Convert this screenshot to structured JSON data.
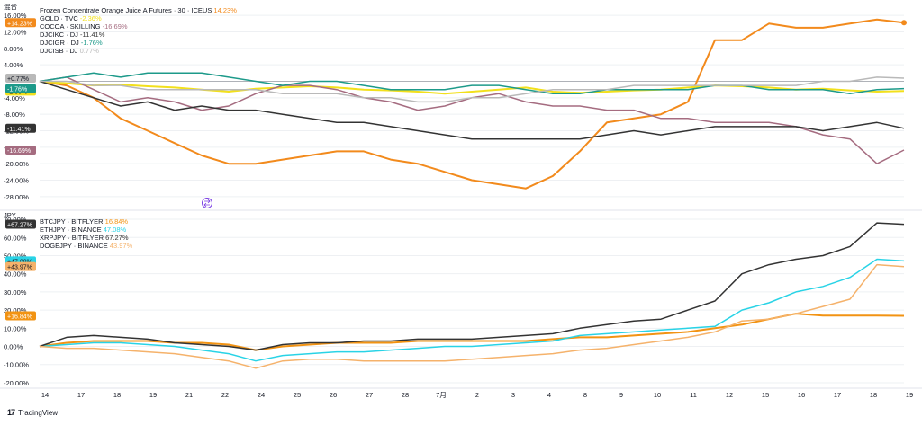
{
  "chart_data": [
    {
      "type": "line",
      "pane_label": "混合",
      "ylim": [
        -30,
        18
      ],
      "yticks": [
        16,
        12,
        8,
        4,
        -4,
        -8,
        -12,
        -16,
        -20,
        -24,
        -28
      ],
      "ytick_labels": [
        "16.00%",
        "12.00%",
        "8.00%",
        "4.00%",
        "-4.00%",
        "-8.00%",
        "-12.00%",
        "-16.00%",
        "-20.00%",
        "-24.00%",
        "-28.00%"
      ],
      "baseline": 0,
      "series": [
        {
          "name": "Frozen Concentrate Orange Juice A Futures · 30 · ICEUS",
          "legend_value": "14.23%",
          "badge": "+14.23%",
          "color": "#f28a1c",
          "last": 14.23,
          "values": [
            0,
            -1,
            -4,
            -9,
            -12,
            -15,
            -18,
            -20,
            -20,
            -19,
            -18,
            -17,
            -17,
            -19,
            -20,
            -22,
            -24,
            -25,
            -26,
            -23,
            -17,
            -10,
            -9,
            -8,
            -5,
            10,
            10,
            14,
            13,
            13,
            14,
            15,
            14.23
          ]
        },
        {
          "name": "GOLD · TVC",
          "legend_value": "-2.36%",
          "badge": "-2.36%",
          "color": "#f2e01c",
          "last": -2.36,
          "values": [
            0,
            -0.5,
            -1,
            -0.8,
            -1.2,
            -1.5,
            -2,
            -2.5,
            -1.8,
            -1.5,
            -1.2,
            -1.5,
            -2,
            -2.2,
            -2.5,
            -3,
            -2.5,
            -2,
            -1.5,
            -2.5,
            -2.8,
            -2.5,
            -2.2,
            -2,
            -1.5,
            -1,
            -1.2,
            -1.5,
            -2,
            -1.8,
            -2.2,
            -2.5,
            -2.36
          ]
        },
        {
          "name": "COCOA · SKILLING",
          "legend_value": "-16.69%",
          "badge": "-16.69%",
          "color": "#a56c80",
          "last": -16.69,
          "values": [
            0,
            1,
            -2,
            -5,
            -4,
            -5,
            -7,
            -6,
            -3,
            -1,
            -1,
            -2,
            -4,
            -5,
            -7,
            -6,
            -4,
            -3,
            -5,
            -6,
            -6,
            -7,
            -7,
            -9,
            -9,
            -10,
            -10,
            -10,
            -11,
            -13,
            -14,
            -20,
            -16.69
          ]
        },
        {
          "name": "DJCIKC · DJ",
          "legend_value": "-11.41%",
          "badge": "-11.41%",
          "color": "#333333",
          "last": -11.41,
          "values": [
            0,
            -2,
            -4,
            -6,
            -5,
            -7,
            -6,
            -7,
            -7,
            -8,
            -9,
            -10,
            -10,
            -11,
            -12,
            -13,
            -14,
            -14,
            -14,
            -14,
            -14,
            -13,
            -12,
            -13,
            -12,
            -11,
            -11,
            -11,
            -11,
            -12,
            -11,
            -10,
            -11.41
          ]
        },
        {
          "name": "DJCIGR · DJ",
          "legend_value": "-1.76%",
          "badge": "-1.76%",
          "color": "#1d9a8a",
          "last": -1.76,
          "values": [
            0,
            1,
            2,
            1,
            2,
            2,
            2,
            1,
            0,
            -1,
            0,
            0,
            -1,
            -2,
            -2,
            -2,
            -1,
            -1,
            -2,
            -3,
            -3,
            -2,
            -2,
            -2,
            -2,
            -1,
            -1,
            -2,
            -2,
            -2,
            -3,
            -2,
            -1.76
          ]
        },
        {
          "name": "DJCISB · DJ",
          "legend_value": "0.77%",
          "badge": "+0.77%",
          "color": "#b9b9b9",
          "last": 0.77,
          "values": [
            0,
            0,
            -1,
            -1,
            -2,
            -2,
            -2,
            -2,
            -2,
            -3,
            -3,
            -3,
            -4,
            -4,
            -5,
            -5,
            -4,
            -4,
            -3,
            -2,
            -2,
            -2,
            -1,
            -1,
            -1,
            -1,
            -1,
            -1,
            -1,
            0,
            0,
            1,
            0.77
          ]
        }
      ]
    },
    {
      "type": "line",
      "pane_label": "JPY",
      "ylim": [
        -22,
        72
      ],
      "yticks": [
        70,
        60,
        50,
        40,
        30,
        20,
        10,
        0,
        -10,
        -20
      ],
      "ytick_labels": [
        "70.00%",
        "60.00%",
        "50.00%",
        "40.00%",
        "30.00%",
        "20.00%",
        "10.00%",
        "0.00%",
        "-10.00%",
        "-20.00%"
      ],
      "series": [
        {
          "name": "BTCJPY · BITFLYER",
          "legend_value": "16.84%",
          "badge": "+16.84%",
          "color": "#f29313",
          "last": 16.84,
          "values": [
            0,
            2,
            3,
            3,
            3,
            2,
            2,
            1,
            -2,
            0,
            1,
            2,
            2,
            2,
            3,
            3,
            3,
            3,
            3,
            4,
            5,
            5,
            6,
            7,
            8,
            10,
            12,
            15,
            18,
            17,
            17,
            17,
            16.84
          ]
        },
        {
          "name": "ETHJPY · BINANCE",
          "legend_value": "47.08%",
          "badge": "+47.08%",
          "color": "#29d3e6",
          "last": 47.08,
          "values": [
            0,
            1,
            2,
            2,
            1,
            0,
            -2,
            -4,
            -8,
            -5,
            -4,
            -3,
            -3,
            -2,
            -1,
            0,
            0,
            1,
            2,
            3,
            6,
            7,
            8,
            9,
            10,
            11,
            20,
            24,
            30,
            33,
            38,
            48,
            47.08
          ]
        },
        {
          "name": "XRPJPY · BITFLYER",
          "legend_value": "67.27%",
          "badge": "+67.27%",
          "color": "#333333",
          "last": 67.27,
          "values": [
            0,
            5,
            6,
            5,
            4,
            2,
            1,
            0,
            -2,
            1,
            2,
            2,
            3,
            3,
            4,
            4,
            4,
            5,
            6,
            7,
            10,
            12,
            14,
            15,
            20,
            25,
            40,
            45,
            48,
            50,
            55,
            68,
            67.27
          ]
        },
        {
          "name": "DOGEJPY · BINANCE",
          "legend_value": "43.97%",
          "badge": "+43.97%",
          "color": "#f5b26b",
          "last": 43.97,
          "values": [
            0,
            -1,
            -1,
            -2,
            -3,
            -4,
            -6,
            -8,
            -12,
            -8,
            -7,
            -7,
            -8,
            -8,
            -8,
            -8,
            -7,
            -6,
            -5,
            -4,
            -2,
            -1,
            1,
            3,
            5,
            8,
            14,
            15,
            18,
            22,
            26,
            45,
            43.97
          ]
        }
      ]
    }
  ],
  "x_axis": {
    "tick_labels": [
      "14",
      "17",
      "18",
      "19",
      "21",
      "22",
      "24",
      "25",
      "26",
      "27",
      "28",
      "7月",
      "2",
      "3",
      "4",
      "8",
      "9",
      "10",
      "11",
      "12",
      "15",
      "16",
      "17",
      "18",
      "19"
    ]
  },
  "compare_icon": "compare-arrows-icon",
  "branding": "TradingView"
}
